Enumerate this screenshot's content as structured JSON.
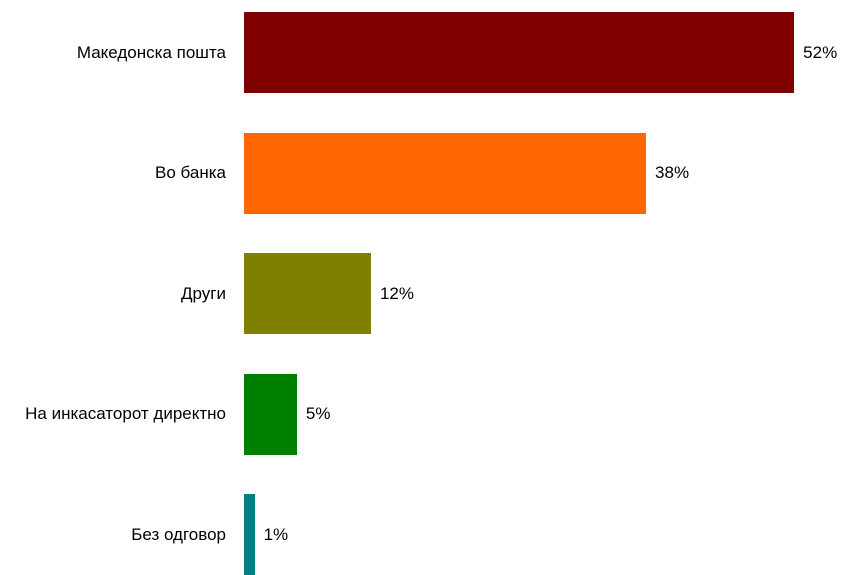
{
  "chart_data": {
    "type": "bar",
    "orientation": "horizontal",
    "categories": [
      "Македонска пошта",
      "Во банка",
      "Други",
      "На инкасаторот директно",
      "Без одговор"
    ],
    "values": [
      52,
      38,
      12,
      5,
      1
    ],
    "value_labels": [
      "52%",
      "38%",
      "12%",
      "5%",
      "1%"
    ],
    "colors": [
      "#800000",
      "#ff6600",
      "#808000",
      "#008000",
      "#008080"
    ]
  }
}
